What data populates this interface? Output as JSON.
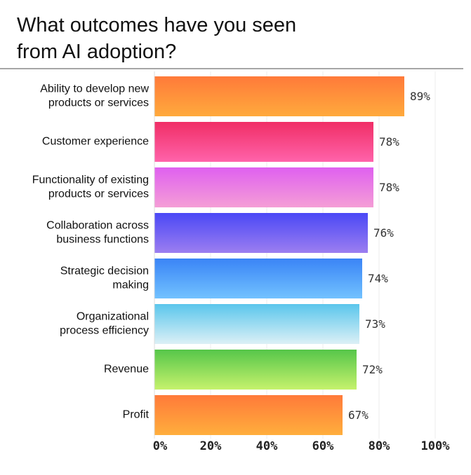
{
  "chart_data": {
    "type": "bar",
    "orientation": "horizontal",
    "title": [
      "What outcomes have you seen",
      "from AI adoption?"
    ],
    "categories": [
      [
        "Ability to develop new",
        "products or services"
      ],
      [
        "Customer experience"
      ],
      [
        "Functionality of existing",
        "products or services"
      ],
      [
        "Collaboration across",
        "business functions"
      ],
      [
        "Strategic decision",
        "making"
      ],
      [
        "Organizational",
        "process efficiency"
      ],
      [
        "Revenue"
      ],
      [
        "Profit"
      ]
    ],
    "values": [
      89,
      78,
      78,
      76,
      74,
      73,
      72,
      67
    ],
    "value_labels": [
      "89%",
      "78%",
      "78%",
      "76%",
      "74%",
      "73%",
      "72%",
      "67%"
    ],
    "colors": [
      [
        "#ff7a3a",
        "#ffaa3c"
      ],
      [
        "#f02e66",
        "#ff63aa"
      ],
      [
        "#df60f0",
        "#f59ed6"
      ],
      [
        "#4a48f6",
        "#9c7ef0"
      ],
      [
        "#3a84f6",
        "#72c2ff"
      ],
      [
        "#5ac6ec",
        "#dcf0f6"
      ],
      [
        "#56c64a",
        "#c6f26c"
      ],
      [
        "#ff7a3a",
        "#ffae3c"
      ]
    ],
    "xlim": [
      0,
      100
    ],
    "xticks": [
      {
        "value": 0,
        "label": "0%"
      },
      {
        "value": 20,
        "label": "20%"
      },
      {
        "value": 40,
        "label": "40%"
      },
      {
        "value": 60,
        "label": "60%"
      },
      {
        "value": 80,
        "label": "80%"
      },
      {
        "value": 100,
        "label": "100%"
      }
    ],
    "grid": true
  }
}
